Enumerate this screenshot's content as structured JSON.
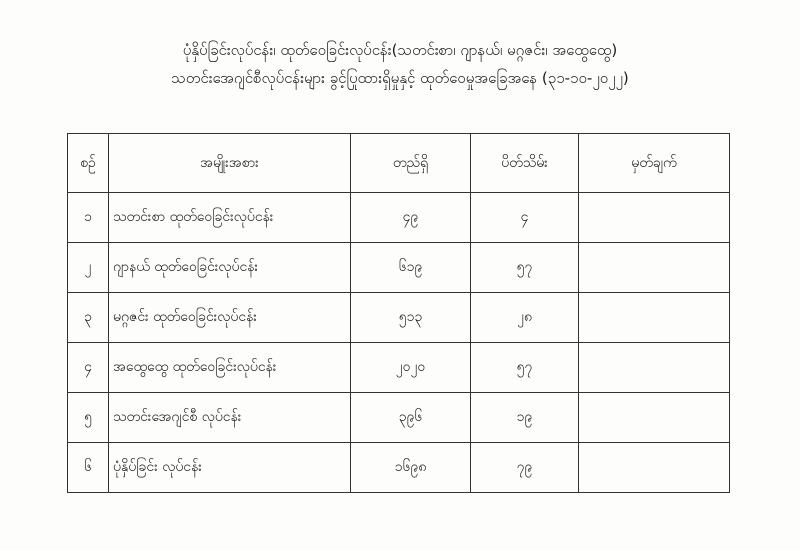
{
  "title_line1": "ပုံနှိပ်ခြင်းလုပ်ငန်း၊ ထုတ်ဝေခြင်းလုပ်ငန်း(သတင်းစာ၊ ဂျာနယ်၊ မဂ္ဂဇင်း၊ အထွေထွေ)",
  "title_line2": "သတင်းအေဂျင်စီလုပ်ငန်းများ ခွင့်ပြုထားရှိမှုနှင့် ထုတ်ဝေမှုအခြေအနေ (၃၁-၁၀-၂၀၂၂)",
  "table": {
    "headers": [
      "စဉ်",
      "အမျိုးအစား",
      "တည်ရှိ",
      "ပိတ်သိမ်း",
      "မှတ်ချက်"
    ],
    "rows": [
      {
        "no": "၁",
        "type": "သတင်းစာ ထုတ်ဝေခြင်းလုပ်ငန်း",
        "existing": "၄၉",
        "closed": "၄",
        "remark": ""
      },
      {
        "no": "၂",
        "type": "ဂျာနယ် ထုတ်ဝေခြင်းလုပ်ငန်း",
        "existing": "၆၁၉",
        "closed": "၅၇",
        "remark": ""
      },
      {
        "no": "၃",
        "type": "မဂ္ဂဇင်း ထုတ်ဝေခြင်းလုပ်ငန်း",
        "existing": "၅၁၃",
        "closed": "၂၈",
        "remark": ""
      },
      {
        "no": "၄",
        "type": "အထွေထွေ ထုတ်ဝေခြင်းလုပ်ငန်း",
        "existing": "၂၀၂၀",
        "closed": "၅၇",
        "remark": ""
      },
      {
        "no": "၅",
        "type": "သတင်းအေဂျင်စီ လုပ်ငန်း",
        "existing": "၃၉၆",
        "closed": "၁၉",
        "remark": ""
      },
      {
        "no": "၆",
        "type": "ပုံနှိပ်ခြင်း လုပ်ငန်း",
        "existing": "၁၆၉၈",
        "closed": "၇၉",
        "remark": ""
      }
    ]
  }
}
